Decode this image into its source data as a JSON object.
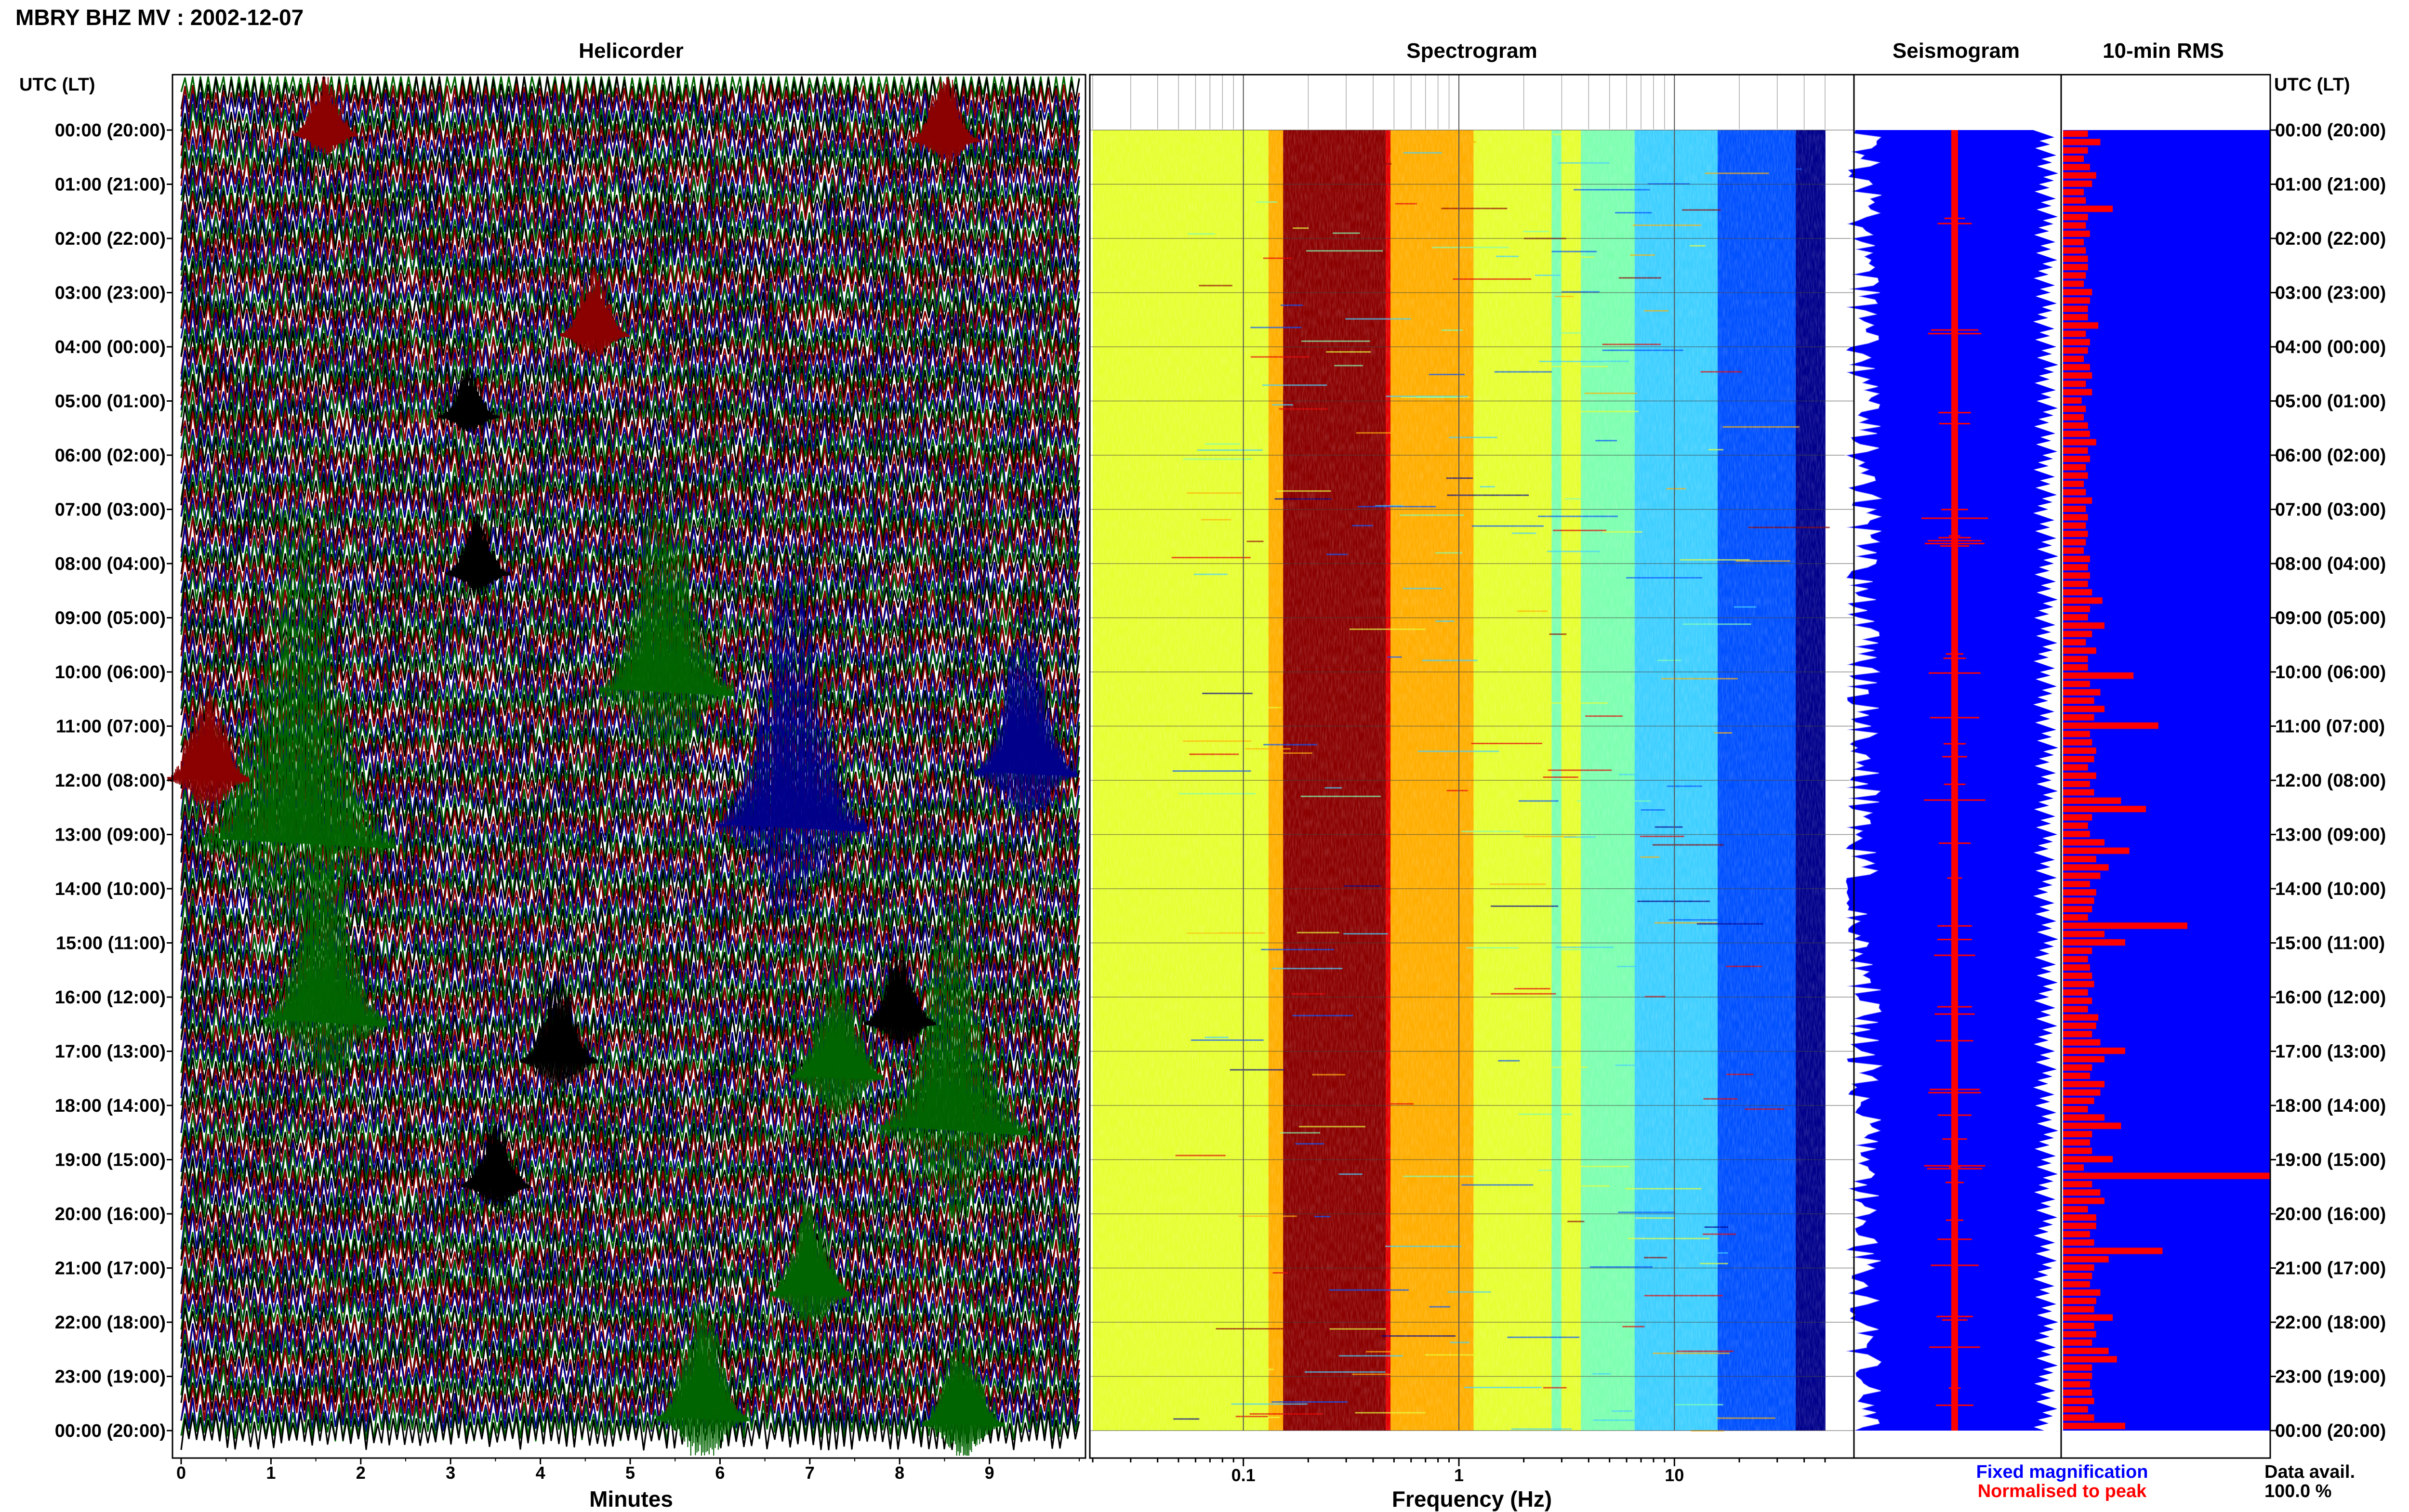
{
  "header": {
    "title": "MBRY BHZ MV : 2002-12-07"
  },
  "panels": {
    "helicorder_title": "Helicorder",
    "spectrogram_title": "Spectrogram",
    "seismogram_title": "Seismogram",
    "rms_title": "10-min RMS"
  },
  "axes": {
    "left_header": "UTC (LT)",
    "right_header": "UTC (LT)",
    "time_labels": [
      "00:00 (20:00)",
      "01:00 (21:00)",
      "02:00 (22:00)",
      "03:00 (23:00)",
      "04:00 (00:00)",
      "05:00 (01:00)",
      "06:00 (02:00)",
      "07:00 (03:00)",
      "08:00 (04:00)",
      "09:00 (05:00)",
      "10:00 (06:00)",
      "11:00 (07:00)",
      "12:00 (08:00)",
      "13:00 (09:00)",
      "14:00 (10:00)",
      "15:00 (11:00)",
      "16:00 (12:00)",
      "17:00 (13:00)",
      "18:00 (14:00)",
      "19:00 (15:00)",
      "20:00 (16:00)",
      "21:00 (17:00)",
      "22:00 (18:00)",
      "23:00 (19:00)",
      "00:00 (20:00)"
    ],
    "minutes_label": "Minutes",
    "minute_ticks": [
      "0",
      "1",
      "2",
      "3",
      "4",
      "5",
      "6",
      "7",
      "8",
      "9"
    ],
    "frequency_label": "Frequency (Hz)",
    "frequency_ticks": [
      "0.1",
      "1",
      "10"
    ]
  },
  "legend": {
    "fixed": "Fixed magnification",
    "fixed_color": "#0000ff",
    "normalised": "Normalised to peak",
    "normalised_color": "#ff0000"
  },
  "footer": {
    "data_avail_label": "Data avail.",
    "data_avail_value": "100.0 %"
  },
  "chart_data": [
    {
      "type": "heatmap",
      "title": "Helicorder",
      "xlabel": "Minutes",
      "xlim": [
        0,
        10
      ],
      "trace_colors": [
        "#000000",
        "#8b0000",
        "#00008b",
        "#006400"
      ],
      "events": [
        {
          "hour": 13.2,
          "minute": 1.3,
          "amplitude": 7.2,
          "color": "#006400"
        },
        {
          "hour": 16.5,
          "minute": 1.6,
          "amplitude": 4.0,
          "color": "#006400"
        },
        {
          "hour": 10.4,
          "minute": 5.4,
          "amplitude": 4.5,
          "color": "#006400"
        },
        {
          "hour": 18.5,
          "minute": 8.6,
          "amplitude": 5.0,
          "color": "#006400"
        },
        {
          "hour": 23.8,
          "minute": 5.8,
          "amplitude": 2.5,
          "color": "#006400"
        },
        {
          "hour": 23.9,
          "minute": 8.7,
          "amplitude": 2.0,
          "color": "#006400"
        },
        {
          "hour": 12.9,
          "minute": 6.8,
          "amplitude": 5.2,
          "color": "#00008b"
        },
        {
          "hour": 11.9,
          "minute": 9.4,
          "amplitude": 3.0,
          "color": "#00008b"
        },
        {
          "hour": 3.8,
          "minute": 4.6,
          "amplitude": 1.4,
          "color": "#8b0000"
        },
        {
          "hour": 0.1,
          "minute": 1.6,
          "amplitude": 1.2,
          "color": "#8b0000"
        },
        {
          "hour": 0.2,
          "minute": 8.5,
          "amplitude": 1.4,
          "color": "#8b0000"
        },
        {
          "hour": 12.0,
          "minute": 0.3,
          "amplitude": 2.0,
          "color": "#8b0000"
        },
        {
          "hour": 21.5,
          "minute": 7.0,
          "amplitude": 2.0,
          "color": "#006400"
        },
        {
          "hour": 17.5,
          "minute": 7.3,
          "amplitude": 2.5,
          "color": "#006400"
        },
        {
          "hour": 17.2,
          "minute": 4.2,
          "amplitude": 1.8,
          "color": "#000000"
        },
        {
          "hour": 16.5,
          "minute": 8.0,
          "amplitude": 1.5,
          "color": "#000000"
        },
        {
          "hour": 8.2,
          "minute": 3.3,
          "amplitude": 1.2,
          "color": "#000000"
        },
        {
          "hour": 5.3,
          "minute": 3.2,
          "amplitude": 1.0,
          "color": "#000000"
        },
        {
          "hour": 19.5,
          "minute": 3.5,
          "amplitude": 1.4,
          "color": "#000000"
        }
      ]
    },
    {
      "type": "heatmap",
      "title": "Spectrogram",
      "xlabel": "Frequency (Hz)",
      "x_scale": "log",
      "xlim": [
        0.02,
        50
      ],
      "peak_band_hz": [
        0.15,
        0.45
      ],
      "secondary_band_hz": [
        3.0,
        4.0
      ],
      "colormap": [
        "#00008b",
        "#0050ff",
        "#3ecfff",
        "#7dffb0",
        "#e6ff32",
        "#ffae00",
        "#e30000",
        "#8b0000"
      ]
    },
    {
      "type": "area",
      "title": "Seismogram",
      "series": [
        {
          "name": "Fixed magnification",
          "color": "#0000ff"
        },
        {
          "name": "Normalised to peak",
          "color": "#ff0000"
        }
      ]
    },
    {
      "type": "bar",
      "title": "10-min RMS",
      "orientation": "horizontal",
      "bins_per_hour": 6,
      "values": [
        0.12,
        0.18,
        0.12,
        0.1,
        0.13,
        0.16,
        0.14,
        0.1,
        0.11,
        0.24,
        0.12,
        0.11,
        0.13,
        0.1,
        0.11,
        0.12,
        0.12,
        0.11,
        0.1,
        0.14,
        0.13,
        0.12,
        0.12,
        0.17,
        0.11,
        0.13,
        0.12,
        0.1,
        0.13,
        0.14,
        0.11,
        0.14,
        0.09,
        0.11,
        0.1,
        0.12,
        0.13,
        0.16,
        0.12,
        0.13,
        0.11,
        0.12,
        0.1,
        0.11,
        0.14,
        0.11,
        0.12,
        0.11,
        0.12,
        0.11,
        0.1,
        0.13,
        0.12,
        0.13,
        0.12,
        0.14,
        0.19,
        0.13,
        0.12,
        0.2,
        0.14,
        0.11,
        0.16,
        0.12,
        0.12,
        0.34,
        0.13,
        0.18,
        0.15,
        0.2,
        0.15,
        0.46,
        0.13,
        0.14,
        0.16,
        0.15,
        0.12,
        0.16,
        0.13,
        0.15,
        0.28,
        0.4,
        0.14,
        0.12,
        0.13,
        0.2,
        0.32,
        0.16,
        0.22,
        0.18,
        0.13,
        0.16,
        0.15,
        0.14,
        0.12,
        0.6,
        0.2,
        0.3,
        0.14,
        0.12,
        0.13,
        0.14,
        0.15,
        0.12,
        0.14,
        0.12,
        0.17,
        0.16,
        0.14,
        0.18,
        0.3,
        0.2,
        0.14,
        0.13,
        0.2,
        0.18,
        0.15,
        0.12,
        0.2,
        0.28,
        0.14,
        0.13,
        0.14,
        0.24,
        0.1,
        1.0,
        0.14,
        0.18,
        0.2,
        0.12,
        0.16,
        0.16,
        0.13,
        0.15,
        0.48,
        0.22,
        0.15,
        0.14,
        0.13,
        0.18,
        0.16,
        0.15,
        0.24,
        0.15,
        0.16,
        0.14,
        0.22,
        0.26,
        0.14,
        0.14,
        0.13,
        0.14,
        0.15,
        0.12,
        0.15,
        0.3
      ]
    }
  ]
}
